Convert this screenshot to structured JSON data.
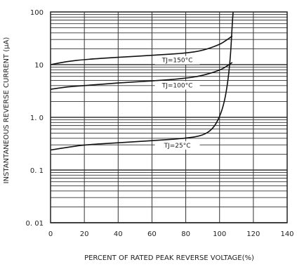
{
  "chart_data": {
    "type": "line",
    "title": "",
    "xlabel": "PERCENT OF RATED PEAK REVERSE VOLTAGE(%)",
    "ylabel": "INSTANTANEOUS REVERSE CURRENT  (μA)",
    "xlim": [
      0,
      140
    ],
    "ylim": [
      0.01,
      100
    ],
    "yscale": "log",
    "grid": true,
    "x_ticks": [
      "0",
      "20",
      "40",
      "60",
      "80",
      "100",
      "120",
      "140"
    ],
    "y_ticks": [
      "0. 01",
      "0. 1",
      "1. 0",
      "10",
      "100"
    ],
    "series": [
      {
        "name": "TJ=150°C",
        "x": [
          0,
          10,
          20,
          40,
          60,
          80,
          90,
          100,
          104,
          107.5
        ],
        "y": [
          10,
          11.5,
          12.5,
          13.8,
          15,
          16.5,
          18.5,
          24,
          29,
          35
        ]
      },
      {
        "name": "TJ=100°C",
        "x": [
          0,
          10,
          20,
          40,
          60,
          80,
          90,
          100,
          104,
          107.5
        ],
        "y": [
          3.4,
          3.8,
          4.0,
          4.5,
          4.9,
          5.5,
          6.2,
          7.8,
          9.2,
          11
        ]
      },
      {
        "name": "TJ=25°C",
        "x": [
          0,
          10,
          20,
          40,
          60,
          80,
          90,
          96,
          100,
          103,
          105,
          106.5,
          107.5,
          108
        ],
        "y": [
          0.24,
          0.27,
          0.3,
          0.33,
          0.36,
          0.4,
          0.45,
          0.6,
          1.0,
          2.0,
          5.0,
          15,
          60,
          100
        ]
      }
    ]
  }
}
